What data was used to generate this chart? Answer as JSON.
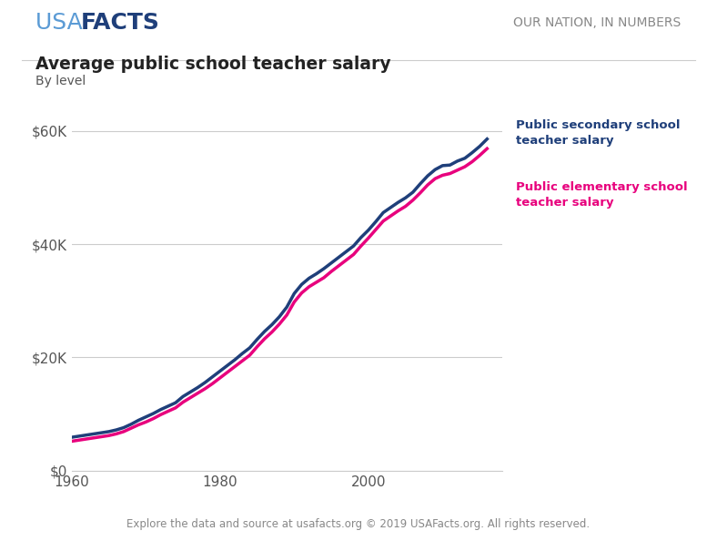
{
  "title": "Average public school teacher salary",
  "subtitle": "By level",
  "header_right": "OUR NATION, IN NUMBERS",
  "footer": "Explore the data and source at usafacts.org © 2019 USAFacts.org. All rights reserved.",
  "secondary_label": "Public secondary school\nteacher salary",
  "elementary_label": "Public elementary school\nteacher salary",
  "secondary_color": "#1f3f7a",
  "elementary_color": "#e8007d",
  "usa_color": "#5b9bd5",
  "background_color": "#ffffff",
  "header_line_color": "#cccccc",
  "grid_color": "#cccccc",
  "title_color": "#222222",
  "subtitle_color": "#555555",
  "tick_color": "#555555",
  "footer_color": "#888888",
  "header_right_color": "#888888",
  "ylim": [
    0,
    65000
  ],
  "yticks": [
    0,
    20000,
    40000,
    60000
  ],
  "ytick_labels": [
    "$0",
    "$20K",
    "$40K",
    "$60K"
  ],
  "years": [
    1960,
    1961,
    1962,
    1963,
    1964,
    1965,
    1966,
    1967,
    1968,
    1969,
    1970,
    1971,
    1972,
    1973,
    1974,
    1975,
    1976,
    1977,
    1978,
    1979,
    1980,
    1981,
    1982,
    1983,
    1984,
    1985,
    1986,
    1987,
    1988,
    1989,
    1990,
    1991,
    1992,
    1993,
    1994,
    1995,
    1996,
    1997,
    1998,
    1999,
    2000,
    2001,
    2002,
    2003,
    2004,
    2005,
    2006,
    2007,
    2008,
    2009,
    2010,
    2011,
    2012,
    2013,
    2014,
    2015,
    2016
  ],
  "secondary_salary": [
    5900,
    6100,
    6300,
    6500,
    6700,
    6900,
    7200,
    7600,
    8200,
    8900,
    9500,
    10100,
    10800,
    11400,
    12000,
    13100,
    13900,
    14700,
    15600,
    16600,
    17600,
    18600,
    19600,
    20700,
    21700,
    23200,
    24600,
    25800,
    27200,
    28900,
    31300,
    32900,
    34000,
    34800,
    35700,
    36700,
    37700,
    38700,
    39700,
    41200,
    42500,
    44000,
    45600,
    46500,
    47400,
    48200,
    49200,
    50700,
    52100,
    53200,
    53900,
    54000,
    54700,
    55200,
    56200,
    57300,
    58600
  ],
  "elementary_salary": [
    5200,
    5400,
    5600,
    5800,
    6000,
    6200,
    6500,
    6900,
    7500,
    8100,
    8600,
    9200,
    9900,
    10500,
    11100,
    12100,
    12900,
    13700,
    14500,
    15400,
    16400,
    17400,
    18400,
    19400,
    20400,
    21900,
    23300,
    24500,
    25900,
    27500,
    29800,
    31400,
    32500,
    33300,
    34100,
    35200,
    36200,
    37200,
    38200,
    39700,
    41100,
    42600,
    44100,
    45000,
    45900,
    46700,
    47800,
    49100,
    50500,
    51600,
    52200,
    52500,
    53100,
    53700,
    54600,
    55700,
    56900
  ],
  "xlim": [
    1960,
    2018
  ],
  "xticks": [
    1960,
    1980,
    2000
  ],
  "line_width": 2.5
}
